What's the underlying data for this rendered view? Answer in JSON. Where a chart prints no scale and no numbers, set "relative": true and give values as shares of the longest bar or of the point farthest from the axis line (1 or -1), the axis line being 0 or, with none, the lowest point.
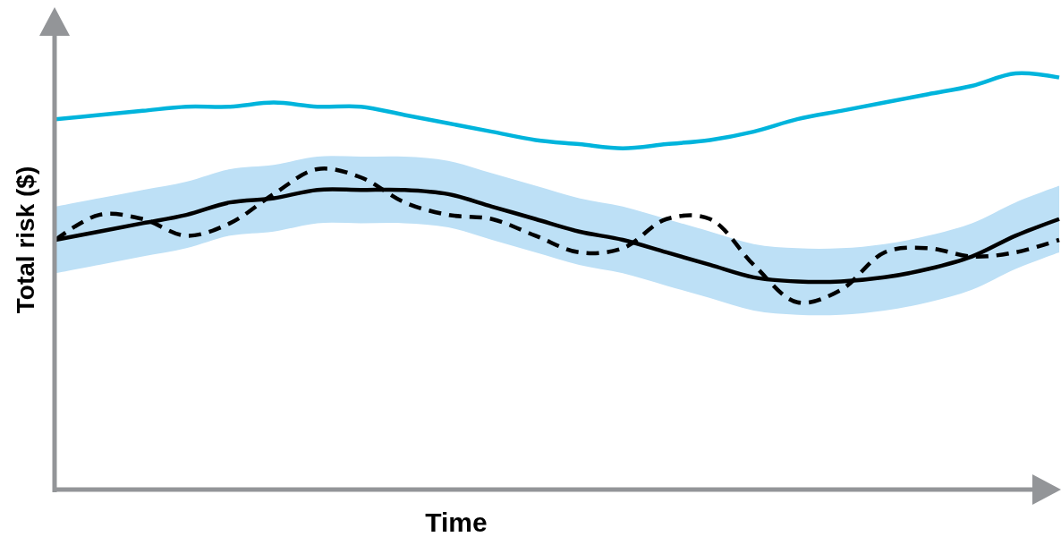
{
  "chart_data": {
    "type": "line",
    "relative": true,
    "xlabel": "Time",
    "ylabel": "Total risk ($)",
    "marker": "none",
    "categories": [
      null,
      null,
      null,
      null,
      null,
      null,
      null,
      null,
      null,
      null,
      null,
      null,
      null,
      null,
      null,
      null,
      null,
      null,
      null,
      null,
      null,
      null,
      null,
      null
    ],
    "series": [
      {
        "color": "#00b4dc",
        "line_style": "solid",
        "values": [
          0.89,
          0.9,
          0.91,
          0.92,
          0.92,
          0.93,
          0.92,
          0.92,
          0.9,
          0.88,
          0.86,
          0.84,
          0.83,
          0.82,
          0.83,
          0.84,
          0.86,
          0.89,
          0.91,
          0.93,
          0.95,
          0.97,
          1.0,
          0.99
        ]
      },
      {
        "color": "#000000",
        "line_style": "solid",
        "values": [
          0.6,
          0.62,
          0.64,
          0.66,
          0.69,
          0.7,
          0.72,
          0.72,
          0.72,
          0.71,
          0.68,
          0.65,
          0.62,
          0.6,
          0.57,
          0.54,
          0.51,
          0.5,
          0.5,
          0.51,
          0.53,
          0.56,
          0.61,
          0.65
        ],
        "upper": [
          0.68,
          0.7,
          0.72,
          0.74,
          0.77,
          0.78,
          0.8,
          0.8,
          0.8,
          0.79,
          0.76,
          0.73,
          0.7,
          0.68,
          0.65,
          0.62,
          0.59,
          0.58,
          0.58,
          0.59,
          0.61,
          0.64,
          0.69,
          0.73
        ],
        "lower": [
          0.52,
          0.54,
          0.56,
          0.58,
          0.61,
          0.62,
          0.64,
          0.64,
          0.64,
          0.63,
          0.6,
          0.57,
          0.54,
          0.52,
          0.49,
          0.46,
          0.43,
          0.42,
          0.42,
          0.43,
          0.45,
          0.48,
          0.53,
          0.57
        ]
      },
      {
        "color": "#000000",
        "line_style": "dashed",
        "values": [
          0.6,
          0.66,
          0.65,
          0.61,
          0.64,
          0.71,
          0.77,
          0.75,
          0.69,
          0.66,
          0.65,
          0.61,
          0.57,
          0.58,
          0.65,
          0.65,
          0.54,
          0.45,
          0.48,
          0.57,
          0.58,
          0.56,
          0.57,
          0.6
        ]
      }
    ]
  }
}
